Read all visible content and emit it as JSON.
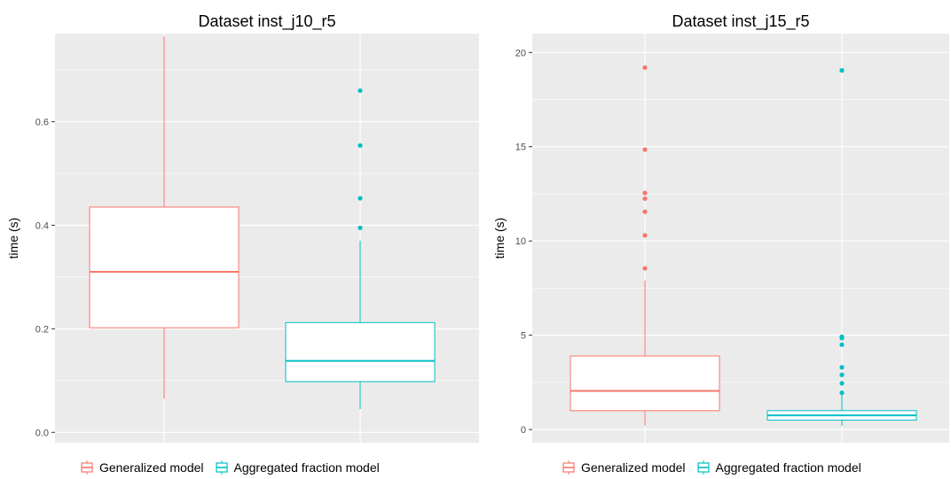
{
  "colors": {
    "generalized": "#F8766D",
    "aggregated": "#00BFC4",
    "panel_bg": "#EBEBEB",
    "grid": "#FFFFFF",
    "tick_text": "#4D4D4D"
  },
  "legend": {
    "generalized_label": "Generalized model",
    "aggregated_label": "Aggregated fraction model"
  },
  "chart_data": [
    {
      "type": "box",
      "title": "Dataset inst_j10_r5",
      "ylabel": "time (s)",
      "xlabel": "",
      "ylim": [
        -0.02,
        0.77
      ],
      "yticks": [
        0.0,
        0.2,
        0.4,
        0.6
      ],
      "ytick_labels": [
        "0.0",
        "0.2",
        "0.4",
        "0.6"
      ],
      "grid": true,
      "legend_position": "bottom",
      "series": [
        {
          "name": "Generalized model",
          "whisker_low": 0.065,
          "q1": 0.202,
          "median": 0.31,
          "q3": 0.435,
          "whisker_high": 0.765,
          "outliers": []
        },
        {
          "name": "Aggregated fraction model",
          "whisker_low": 0.045,
          "q1": 0.098,
          "median": 0.138,
          "q3": 0.212,
          "whisker_high": 0.37,
          "outliers": [
            0.395,
            0.452,
            0.554,
            0.66
          ]
        }
      ]
    },
    {
      "type": "box",
      "title": "Dataset inst_j15_r5",
      "ylabel": "time (s)",
      "xlabel": "",
      "ylim": [
        -0.7,
        21.0
      ],
      "yticks": [
        0,
        5,
        10,
        15,
        20
      ],
      "ytick_labels": [
        "0",
        "5",
        "10",
        "15",
        "20"
      ],
      "grid": true,
      "legend_position": "bottom",
      "series": [
        {
          "name": "Generalized model",
          "whisker_low": 0.2,
          "q1": 1.0,
          "median": 2.05,
          "q3": 3.9,
          "whisker_high": 7.9,
          "outliers": [
            8.55,
            10.3,
            11.55,
            12.25,
            12.55,
            14.85,
            19.2
          ]
        },
        {
          "name": "Aggregated fraction model",
          "whisker_low": 0.2,
          "q1": 0.5,
          "median": 0.75,
          "q3": 1.0,
          "whisker_high": 1.85,
          "outliers": [
            1.95,
            2.45,
            2.9,
            3.3,
            4.5,
            4.85,
            4.92,
            19.05
          ]
        }
      ]
    }
  ]
}
